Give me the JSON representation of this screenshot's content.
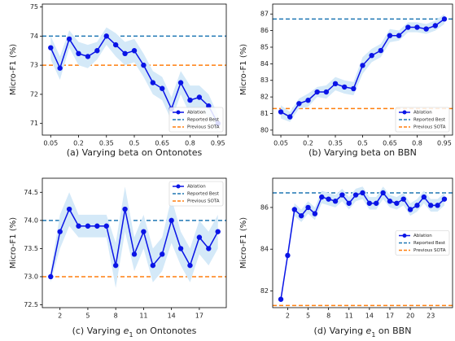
{
  "chart_data": [
    {
      "type": "line",
      "ylabel": "Micro-F1 (%)",
      "xlabel": [
        {
          "text": "(a) Varying beta on Ontonotes"
        }
      ],
      "x": [
        0.05,
        0.1,
        0.15,
        0.2,
        0.25,
        0.3,
        0.35,
        0.4,
        0.45,
        0.5,
        0.55,
        0.6,
        0.65,
        0.7,
        0.75,
        0.8,
        0.85,
        0.9,
        0.95
      ],
      "xlim": [
        0.005,
        0.995
      ],
      "xticks": [
        0.05,
        0.2,
        0.35,
        0.5,
        0.65,
        0.8,
        0.95
      ],
      "ylim": [
        70.6,
        75.1
      ],
      "yticks": [
        71,
        72,
        73,
        74,
        75
      ],
      "series": [
        {
          "name": "Ablation",
          "color": "#0a14e6",
          "band_color": "#d4e9f8",
          "values": [
            73.6,
            72.9,
            73.9,
            73.4,
            73.3,
            73.5,
            74.0,
            73.7,
            73.4,
            73.5,
            73.0,
            72.4,
            72.2,
            71.5,
            72.4,
            71.8,
            71.9,
            71.6,
            71.0
          ],
          "err": [
            0.4,
            0.4,
            0.3,
            0.4,
            0.4,
            0.3,
            0.3,
            0.4,
            0.4,
            0.4,
            0.4,
            0.4,
            0.4,
            0.4,
            0.4,
            0.5,
            0.4,
            0.4,
            0.3
          ]
        }
      ],
      "hlines": [
        {
          "name": "Reported Best",
          "value": 74.0,
          "color": "#1f77b4"
        },
        {
          "name": "Previous SOTA",
          "value": 73.0,
          "color": "#ff7f0e"
        }
      ],
      "legend": "lower right"
    },
    {
      "type": "line",
      "ylabel": "Micro-F1 (%)",
      "xlabel": [
        {
          "text": "(b) Varying beta on BBN"
        }
      ],
      "x": [
        0.05,
        0.1,
        0.15,
        0.2,
        0.25,
        0.3,
        0.35,
        0.4,
        0.45,
        0.5,
        0.55,
        0.6,
        0.65,
        0.7,
        0.75,
        0.8,
        0.85,
        0.9,
        0.95
      ],
      "xlim": [
        0.005,
        0.995
      ],
      "xticks": [
        0.05,
        0.2,
        0.35,
        0.5,
        0.65,
        0.8,
        0.95
      ],
      "ylim": [
        79.7,
        87.6
      ],
      "yticks": [
        80,
        81,
        82,
        83,
        84,
        85,
        86,
        87
      ],
      "series": [
        {
          "name": "Ablation",
          "color": "#0a14e6",
          "band_color": "#d4e9f8",
          "values": [
            81.1,
            80.8,
            81.6,
            81.8,
            82.3,
            82.3,
            82.8,
            82.6,
            82.5,
            83.9,
            84.5,
            84.8,
            85.7,
            85.7,
            86.2,
            86.2,
            86.1,
            86.3,
            86.7
          ],
          "err": [
            0.4,
            0.3,
            0.3,
            0.4,
            0.3,
            0.4,
            0.4,
            0.4,
            0.4,
            0.5,
            0.4,
            0.4,
            0.4,
            0.3,
            0.3,
            0.3,
            0.3,
            0.3,
            0.3
          ]
        }
      ],
      "hlines": [
        {
          "name": "Reported Best",
          "value": 86.7,
          "color": "#1f77b4"
        },
        {
          "name": "Previous SOTA",
          "value": 81.3,
          "color": "#ff7f0e"
        }
      ],
      "legend": "lower right"
    },
    {
      "type": "line",
      "ylabel": "Micro-F1 (%)",
      "xlabel": [
        {
          "text": "(c) Varying "
        },
        {
          "text": "e",
          "style": "italic"
        },
        {
          "text": "1",
          "style": "sub"
        },
        {
          "text": " on Ontonotes"
        }
      ],
      "x": [
        1,
        2,
        3,
        4,
        5,
        6,
        7,
        8,
        9,
        10,
        11,
        12,
        13,
        14,
        15,
        16,
        17,
        18,
        19
      ],
      "xlim": [
        0.1,
        19.9
      ],
      "xticks": [
        2,
        5,
        8,
        11,
        14,
        17
      ],
      "ylim": [
        72.45,
        74.75
      ],
      "yticks": [
        72.5,
        {
          "value": 73,
          "label": "73.0"
        },
        73.5,
        {
          "value": 74,
          "label": "74.0"
        },
        74.5
      ],
      "series": [
        {
          "name": "Ablation",
          "color": "#0a14e6",
          "band_color": "#d4e9f8",
          "values": [
            73.0,
            73.8,
            74.2,
            73.9,
            73.9,
            73.9,
            73.9,
            73.2,
            74.2,
            73.4,
            73.8,
            73.2,
            73.4,
            74.0,
            73.5,
            73.2,
            73.7,
            73.5,
            73.8
          ],
          "err": [
            0.1,
            0.3,
            0.3,
            0.2,
            0.2,
            0.2,
            0.2,
            0.4,
            0.4,
            0.3,
            0.3,
            0.3,
            0.3,
            0.4,
            0.3,
            0.3,
            0.3,
            0.3,
            0.3
          ]
        }
      ],
      "hlines": [
        {
          "name": "Reported Best",
          "value": 74.0,
          "color": "#1f77b4"
        },
        {
          "name": "Previous SOTA",
          "value": 73.0,
          "color": "#ff7f0e"
        }
      ],
      "legend": "upper right"
    },
    {
      "type": "line",
      "ylabel": "Micro-F1 (%)",
      "xlabel": [
        {
          "text": "(d) Varying "
        },
        {
          "text": "e",
          "style": "italic"
        },
        {
          "text": "1",
          "style": "sub"
        },
        {
          "text": " on BBN"
        }
      ],
      "x": [
        1,
        2,
        3,
        4,
        5,
        6,
        7,
        8,
        9,
        10,
        11,
        12,
        13,
        14,
        15,
        16,
        17,
        18,
        19,
        20,
        21,
        22,
        23,
        24,
        25
      ],
      "xlim": [
        -0.2,
        26.2
      ],
      "xticks": [
        2,
        5,
        8,
        11,
        14,
        17,
        20,
        23
      ],
      "ylim": [
        81.2,
        87.4
      ],
      "yticks": [
        82,
        84,
        86
      ],
      "series": [
        {
          "name": "Ablation",
          "color": "#0a14e6",
          "band_color": "#d4e9f8",
          "values": [
            81.6,
            83.7,
            85.9,
            85.6,
            86.0,
            85.7,
            86.5,
            86.4,
            86.3,
            86.6,
            86.2,
            86.6,
            86.7,
            86.2,
            86.2,
            86.7,
            86.3,
            86.2,
            86.4,
            85.9,
            86.1,
            86.5,
            86.1,
            86.1,
            86.4
          ],
          "err": [
            0.1,
            0.2,
            0.3,
            0.3,
            0.3,
            0.3,
            0.3,
            0.3,
            0.3,
            0.3,
            0.3,
            0.3,
            0.3,
            0.3,
            0.3,
            0.3,
            0.3,
            0.3,
            0.3,
            0.3,
            0.3,
            0.3,
            0.3,
            0.3,
            0.3
          ]
        }
      ],
      "hlines": [
        {
          "name": "Reported Best",
          "value": 86.7,
          "color": "#1f77b4"
        },
        {
          "name": "Previous SOTA",
          "value": 81.3,
          "color": "#ff7f0e"
        }
      ],
      "legend": "center right"
    }
  ]
}
